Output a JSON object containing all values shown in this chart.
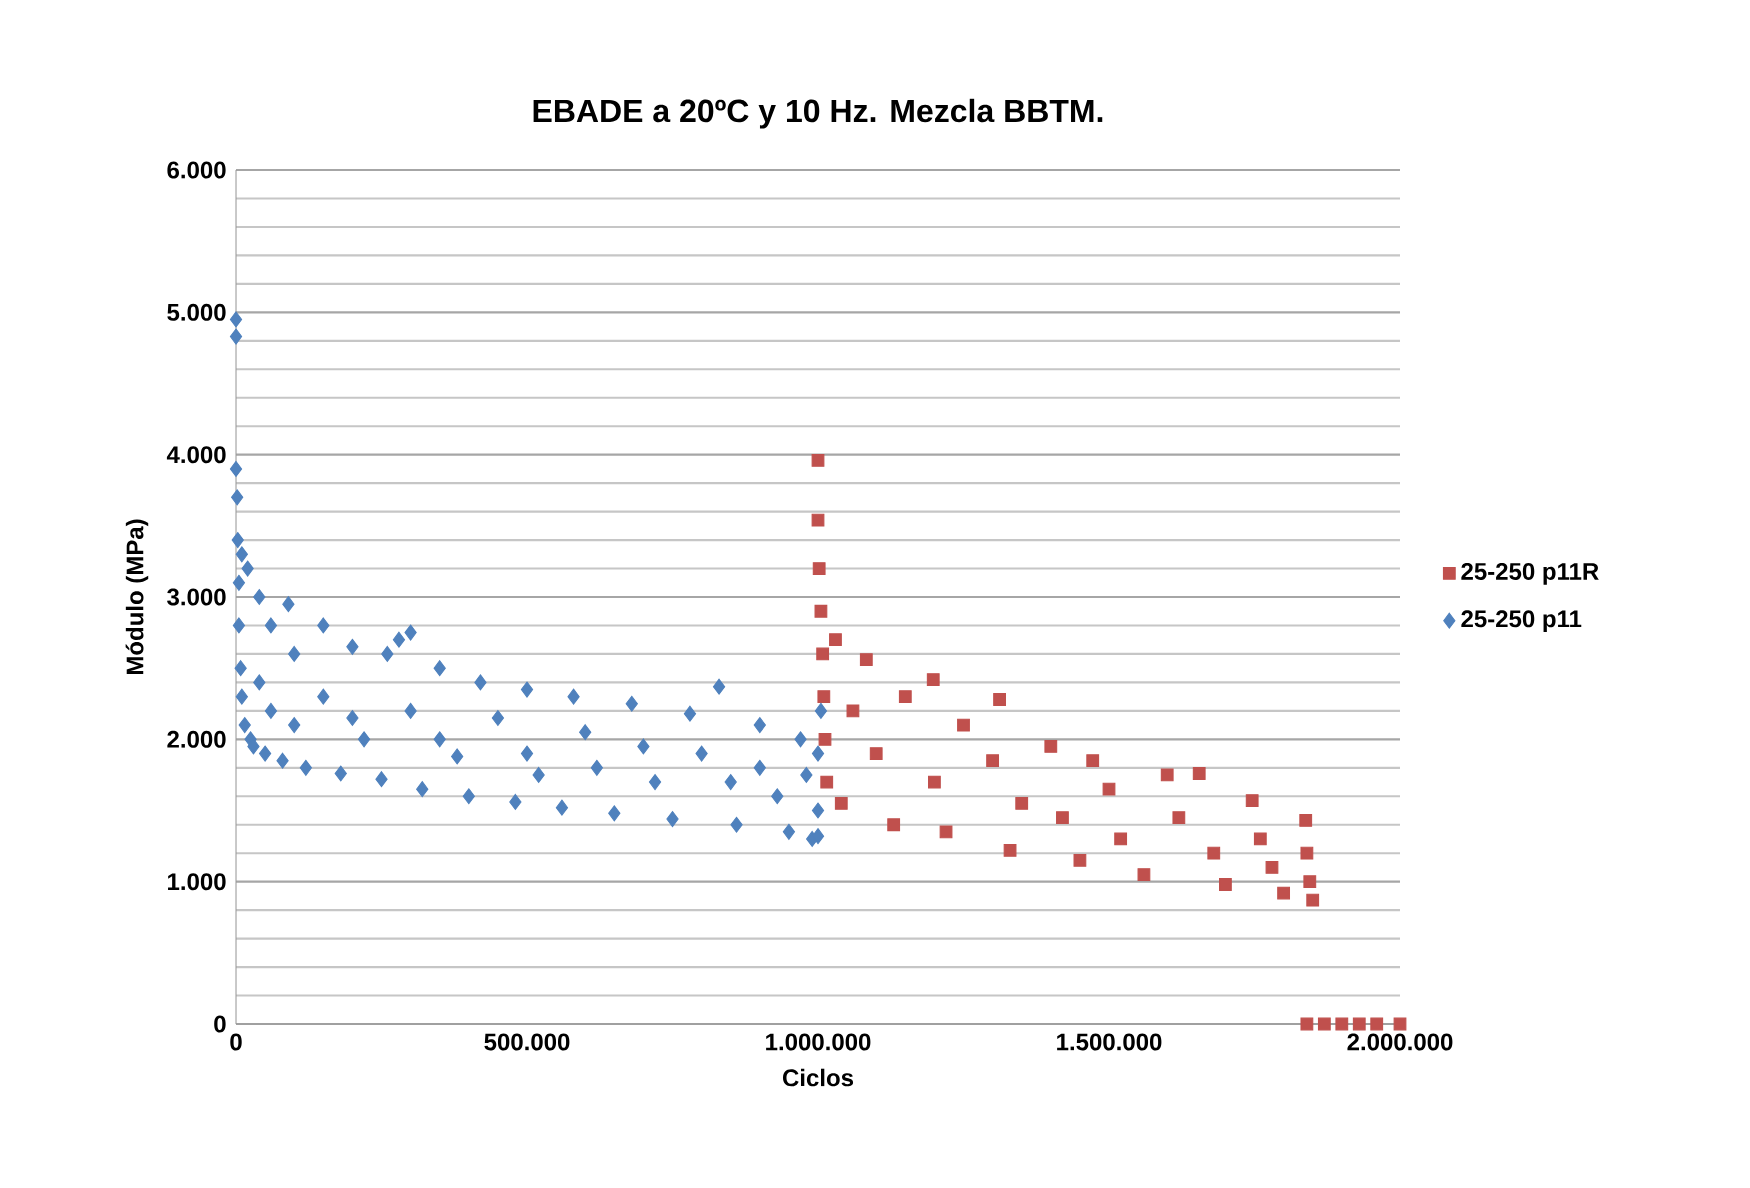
{
  "chart_data": {
    "type": "scatter",
    "title": "EBADE a 20ºC y 10 Hz. Mezcla BBTM.",
    "xlabel": "Ciclos",
    "ylabel": "Módulo (MPa)",
    "xlim": [
      0,
      2000000
    ],
    "ylim": [
      0,
      6000
    ],
    "xticks": [
      {
        "value": 0,
        "label": "0"
      },
      {
        "value": 500000,
        "label": "500.000"
      },
      {
        "value": 1000000,
        "label": "1.000.000"
      },
      {
        "value": 1500000,
        "label": "1.500.000"
      },
      {
        "value": 2000000,
        "label": "2.000.000"
      }
    ],
    "yticks": [
      {
        "value": 0,
        "label": "0"
      },
      {
        "value": 1000,
        "label": "1.000"
      },
      {
        "value": 2000,
        "label": "2.000"
      },
      {
        "value": 3000,
        "label": "3.000"
      },
      {
        "value": 4000,
        "label": "4.000"
      },
      {
        "value": 5000,
        "label": "5.000"
      },
      {
        "value": 6000,
        "label": "6.000"
      }
    ],
    "grid": "y",
    "legend": "right",
    "series": [
      {
        "name": "25-250 p11R",
        "color": "#c0504d",
        "marker": "square",
        "x": [
          1000000,
          1000000,
          1002000,
          1005000,
          1008000,
          1010000,
          1012000,
          1015000,
          1030000,
          1040000,
          1060000,
          1083000,
          1100000,
          1130000,
          1150000,
          1198000,
          1200000,
          1220000,
          1250000,
          1300000,
          1312000,
          1330000,
          1350000,
          1400000,
          1420000,
          1450000,
          1472000,
          1500000,
          1520000,
          1560000,
          1600000,
          1620000,
          1655000,
          1680000,
          1700000,
          1746000,
          1760000,
          1780000,
          1800000,
          1838000,
          1840000,
          1845000,
          1850000,
          1840000,
          1870000,
          1900000,
          1930000,
          1960000,
          2000000
        ],
        "values": [
          3960,
          3540,
          3200,
          2900,
          2600,
          2300,
          2000,
          1700,
          2700,
          1550,
          2200,
          2560,
          1900,
          1400,
          2300,
          2420,
          1700,
          1350,
          2100,
          1850,
          2280,
          1220,
          1550,
          1950,
          1450,
          1150,
          1850,
          1650,
          1300,
          1050,
          1750,
          1450,
          1760,
          1200,
          980,
          1570,
          1300,
          1100,
          920,
          1430,
          1200,
          1000,
          870,
          0,
          0,
          0,
          0,
          0,
          0
        ]
      },
      {
        "name": "25-250 p11",
        "color": "#4f81bd",
        "marker": "diamond",
        "x": [
          0,
          0,
          0,
          2000,
          3000,
          5000,
          5000,
          8000,
          10000,
          10000,
          15000,
          20000,
          25000,
          30000,
          40000,
          40000,
          50000,
          60000,
          60000,
          80000,
          90000,
          100000,
          100000,
          120000,
          150000,
          150000,
          180000,
          200000,
          200000,
          220000,
          250000,
          260000,
          280000,
          300000,
          300000,
          320000,
          350000,
          350000,
          380000,
          400000,
          420000,
          450000,
          480000,
          500000,
          500000,
          520000,
          560000,
          580000,
          600000,
          620000,
          650000,
          680000,
          700000,
          720000,
          750000,
          780000,
          800000,
          830000,
          850000,
          860000,
          900000,
          900000,
          930000,
          950000,
          970000,
          980000,
          990000,
          1000000,
          1000000,
          1000000,
          1005000
        ],
        "values": [
          4950,
          4830,
          3900,
          3700,
          3400,
          3100,
          2800,
          2500,
          2300,
          3300,
          2100,
          3200,
          2000,
          1950,
          3000,
          2400,
          1900,
          2800,
          2200,
          1850,
          2950,
          2600,
          2100,
          1800,
          2800,
          2300,
          1760,
          2650,
          2150,
          2000,
          1720,
          2600,
          2700,
          2750,
          2200,
          1650,
          2500,
          2000,
          1880,
          1600,
          2400,
          2150,
          1560,
          2350,
          1900,
          1750,
          1520,
          2300,
          2050,
          1800,
          1480,
          2250,
          1950,
          1700,
          1440,
          2180,
          1900,
          2370,
          1700,
          1400,
          2100,
          1800,
          1600,
          1350,
          2000,
          1750,
          1300,
          1900,
          1500,
          1320,
          2200
        ]
      }
    ]
  }
}
